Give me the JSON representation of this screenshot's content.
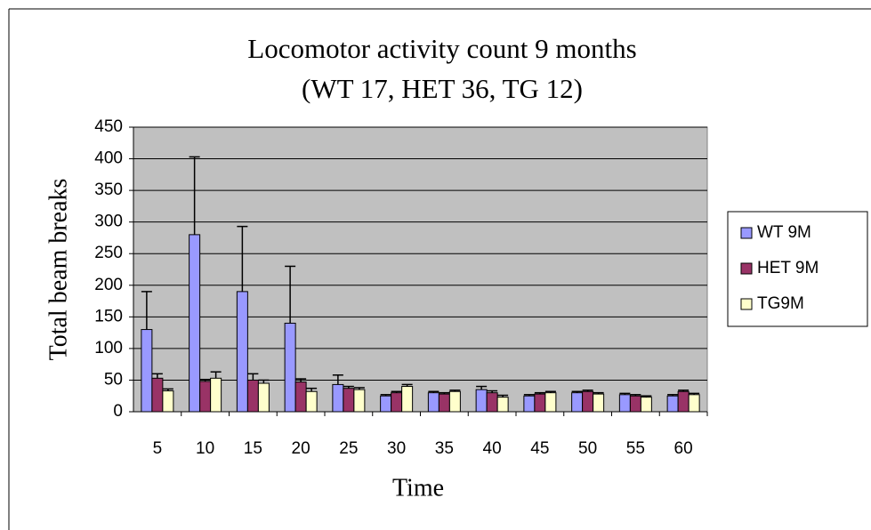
{
  "chart_data": {
    "type": "bar",
    "title": "Locomotor activity count 9 months",
    "subtitle": "(WT 17, HET 36, TG 12)",
    "x_label": "Time",
    "y_label": "Total beam breaks",
    "categories": [
      5,
      10,
      15,
      20,
      25,
      30,
      35,
      40,
      45,
      50,
      55,
      60
    ],
    "series": [
      {
        "name": "WT 9M",
        "color": "#9999ff",
        "values": [
          130,
          280,
          190,
          140,
          43,
          25,
          30,
          35,
          25,
          30,
          27,
          25
        ],
        "errors": [
          60,
          123,
          103,
          90,
          15,
          2,
          2,
          5,
          2,
          2,
          2,
          2
        ]
      },
      {
        "name": "HET 9M",
        "color": "#993366",
        "values": [
          53,
          48,
          50,
          47,
          37,
          30,
          28,
          30,
          28,
          32,
          25,
          32
        ],
        "errors": [
          7,
          3,
          10,
          5,
          3,
          2,
          2,
          3,
          2,
          2,
          2,
          2
        ]
      },
      {
        "name": "TG9M",
        "color": "#ffffcc",
        "values": [
          33,
          53,
          45,
          32,
          35,
          40,
          32,
          23,
          30,
          28,
          23,
          27
        ],
        "errors": [
          3,
          10,
          5,
          5,
          3,
          3,
          2,
          3,
          2,
          2,
          2,
          2
        ]
      }
    ],
    "ylim": [
      0,
      450
    ],
    "yticks": [
      0,
      50,
      100,
      150,
      200,
      250,
      300,
      350,
      400,
      450
    ],
    "grid": true,
    "legend": "right",
    "plot_background": "#c0c0c0"
  }
}
